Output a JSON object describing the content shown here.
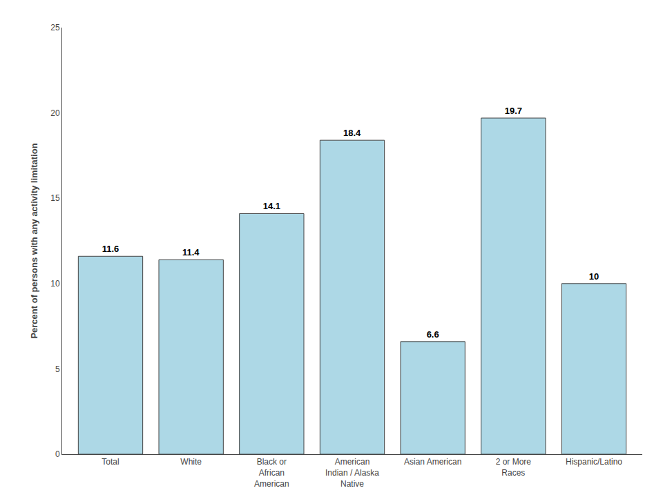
{
  "chart_data": {
    "type": "bar",
    "categories": [
      "Total",
      "White",
      "Black or\nAfrican\nAmerican",
      "American\nIndian / Alaska\nNative",
      "Asian American",
      "2 or More\nRaces",
      "Hispanic/Latino"
    ],
    "values": [
      11.6,
      11.4,
      14.1,
      18.4,
      6.6,
      19.7,
      10.0
    ],
    "color": "#ADD8E6",
    "ylabel": "Percent of persons with any activity limitation",
    "ylim": [
      0,
      25
    ],
    "yticks": [
      0,
      5,
      10,
      15,
      20,
      25
    ],
    "grid": false,
    "data_labels": true
  }
}
